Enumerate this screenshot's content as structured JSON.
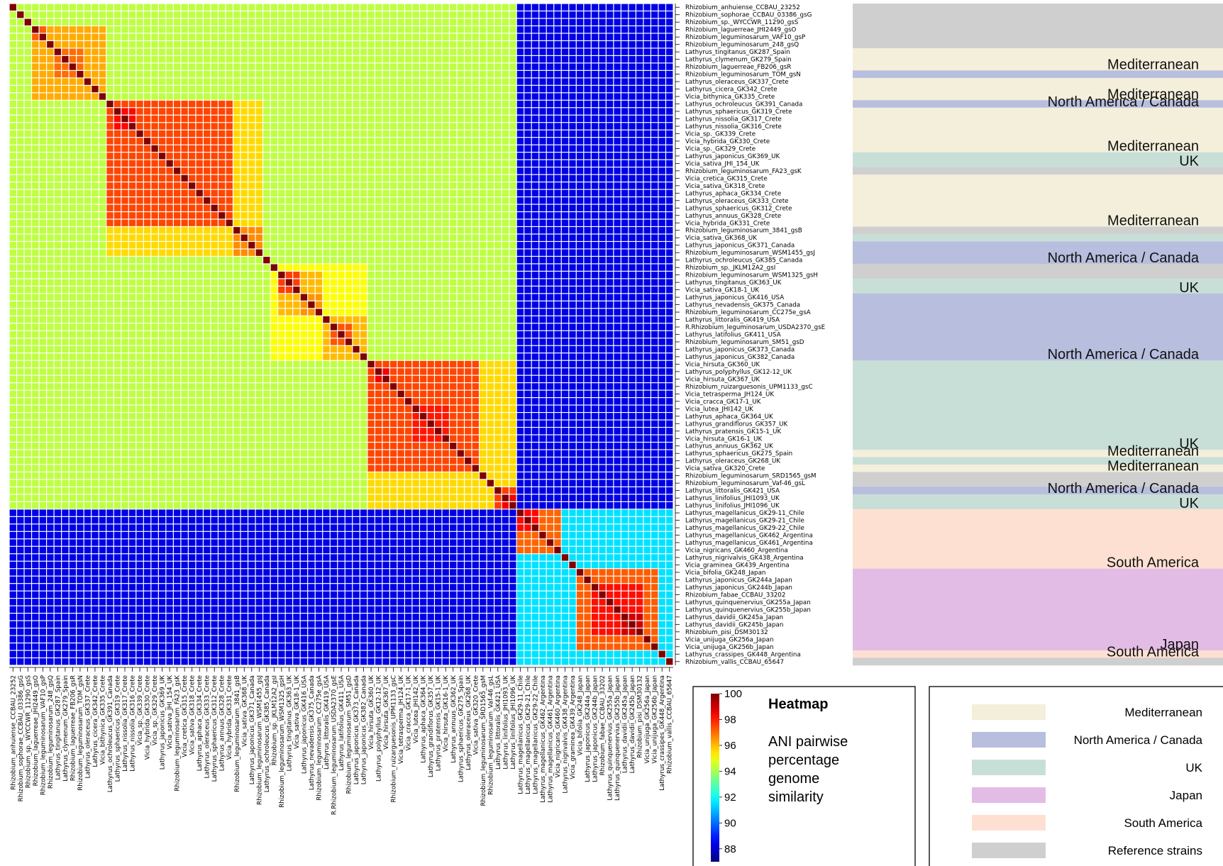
{
  "chart_data": {
    "type": "heatmap",
    "labels": [
      "Rhizobium_anhuiense_CCBAU_23252",
      "Rhizobium_sophorae_CCBAU_03386_gsG",
      "Rhizobium_sp._WYCCWR_11290_gsS",
      "Rhizobium_laguerreae_JHI2449_gsO",
      "Rhizobium_leguminosarum_VAF10_gsP",
      "Rhizobium_leguminosarum_248_gsQ",
      "Lathyrus_tingitanus_GK287_Spain",
      "Lathyrus_clymenum_GK279_Spain",
      "Rhizobium_laguerreae_FB206_gsR",
      "Rhizobium_leguminosarum_TOM_gsN",
      "Lathyrus_oleraceus_GK337_Crete",
      "Lathyrus_cicera_GK342_Crete",
      "Vicia_bithynica_GK335_Crete",
      "Lathyrus_ochroleucus_GK391_Canada",
      "Lathyrus_sphaericus_GK319_Crete",
      "Lathyrus_nissolia_GK317_Crete",
      "Lathyrus_nissolia_GK316_Crete",
      "Vicia_sp._GK339_Crete",
      "Vicia_hybrida_GK330_Crete",
      "Vicia_sp._GK329_Crete",
      "Lathyrus_japonicus_GK369_UK",
      "Vicia_sativa_JHI_154_UK",
      "Rhizobium_leguminosarum_FA23_gsK",
      "Vicia_cretica_GK315_Crete",
      "Vicia_sativa_GK318_Crete",
      "Lathyrus_aphaca_GK334_Crete",
      "Lathyrus_oleraceus_GK333_Crete",
      "Lathyrus_sphaericus_GK312_Crete",
      "Lathyrus_annuus_GK328_Crete",
      "Vicia_hybrida_GK331_Crete",
      "Rhizobium_leguminosarum_3841_gsB",
      "Vicia_sativa_GK368_UK",
      "Lathyrus_japonicus_GK371_Canada",
      "Rhizobium_leguminosarum_WSM1455_gsJ",
      "Lathyrus_ochroleucus_GK385_Canada",
      "Rhizobium_sp._JKLM12A2_gsI",
      "Rhizobium_leguminosarum_WSM1325_gsH",
      "Lathyrus_tingitanus_GK363_UK",
      "Vicia_sativa_GK18-1_UK",
      "Lathyrus_japonicus_GK416_USA",
      "Lathyrus_nevadensis_GK375_Canada",
      "Rhizobium_leguminosarum_CC275e_gsA",
      "Lathyrus_littoralis_GK419_USA",
      "R.Rhizobium_leguminosarum_USDA2370_gsE",
      "Lathyrus_latifolius_GK411_USA",
      "Rhizobium_leguminosarum_SM51_gsD",
      "Lathyrus_japonicus_GK373_Canada",
      "Lathyrus_japonicus_GK382_Canada",
      "Vicia_hirsuta_GK360_UK",
      "Lathyrus_polyphyllus_GK12-12_UK",
      "Vicia_hirsuta_GK367_UK",
      "Rhizobium_ruizarguesonis_UPM1133_gsC",
      "Vicia_tetrasperma_JH124_UK",
      "Vicia_cracca_GK17-1_UK",
      "Vicia_lutea_JHI142_UK",
      "Lathyrus_aphaca_GK364_UK",
      "Lathyrus_grandiflorus_GK357_UK",
      "Lathyrus_pratensis_GK15-1_UK",
      "Vicia_hirsuta_GK16-1_UK",
      "Lathyrus_annuus_GK362_UK",
      "Lathyrus_sphaericus_GK275_Spain",
      "Lathyrus_oleraceus_GK268_UK",
      "Vicia_sativa_GK320_Crete",
      "Rhizobium_leguminosarum_SRD1565_gsM",
      "Rhizobium_leguminosarum_Vaf-46_gsL",
      "Lathyrus_littoralis_GK421_USA",
      "Lathyrus_linifolius_JHI1093_UK",
      "Lathyrus_linifolius_JHI1096_UK",
      "Lathyrus_magellanicus_GK29-11_Chile",
      "Lathyrus_magellanicus_GK29-21_Chile",
      "Lathyrus_magellanicus_GK29-22_Chile",
      "Lathyrus_magellanicus_GK462_Argentina",
      "Lathyrus_magellanicus_GK461_Argentina",
      "Vicia_nigricans_GK460_Argentina",
      "Lathyrus_nigrivalvis_GK438_Argentina",
      "Vicia_graminea_GK439_Argentina",
      "Vicia_bifolia_GK248_Japan",
      "Lathyrus_japonicus_GK244a_Japan",
      "Lathyrus_japonicus_GK244b_Japan",
      "Rhizobium_fabae_CCBAU_33202",
      "Lathyrus_quinquenervius_GK255a_Japan",
      "Lathyrus_quinquenervius_GK255b_Japan",
      "Lathyrus_davidii_GK245a_Japan",
      "Lathyrus_davidii_GK245b_Japan",
      "Rhizobium_pisi_DSM30132",
      "Vicia_unijuga_GK256a_Japan",
      "Vicia_unijuga_GK256b_Japan",
      "Lathyrus_crassipes_GK448_Argentina",
      "Rhizobium_vallis_CCBAU_65647"
    ],
    "value_range": [
      87,
      100
    ],
    "value_model": {
      "diagonal": 100,
      "background_group_A": 94.3,
      "between_groups_A_and_B": 88.3,
      "group_B_outer": 91.5,
      "note_blocks": "blocks of higher similarity listed in blocks[] (row start, end, value)"
    },
    "groups": {
      "A": [
        0,
        67
      ],
      "B1": [
        68,
        75
      ],
      "B2": [
        76,
        86
      ],
      "B3": [
        87,
        87
      ],
      "B4": [
        88,
        88
      ]
    },
    "blocks": [
      {
        "start": 3,
        "end": 12,
        "value": 96.2
      },
      {
        "start": 3,
        "end": 4,
        "value": 97.2
      },
      {
        "start": 6,
        "end": 9,
        "value": 97.0
      },
      {
        "start": 13,
        "end": 33,
        "value": 95.6
      },
      {
        "start": 13,
        "end": 29,
        "value": 97.5
      },
      {
        "start": 14,
        "end": 16,
        "value": 98.3
      },
      {
        "start": 30,
        "end": 33,
        "value": 96.6
      },
      {
        "start": 35,
        "end": 47,
        "value": 95.1
      },
      {
        "start": 36,
        "end": 41,
        "value": 96.0
      },
      {
        "start": 36,
        "end": 38,
        "value": 97.6
      },
      {
        "start": 39,
        "end": 41,
        "value": 96.5
      },
      {
        "start": 42,
        "end": 47,
        "value": 96.0
      },
      {
        "start": 43,
        "end": 45,
        "value": 97.3
      },
      {
        "start": 48,
        "end": 67,
        "value": 95.6
      },
      {
        "start": 48,
        "end": 62,
        "value": 97.5
      },
      {
        "start": 49,
        "end": 50,
        "value": 98.5
      },
      {
        "start": 54,
        "end": 58,
        "value": 98.1
      },
      {
        "start": 65,
        "end": 67,
        "value": 97.6
      },
      {
        "start": 66,
        "end": 67,
        "value": 98.5
      },
      {
        "start": 68,
        "end": 73,
        "value": 97.1
      },
      {
        "start": 68,
        "end": 70,
        "value": 98.3
      },
      {
        "start": 76,
        "end": 86,
        "value": 97.2
      },
      {
        "start": 78,
        "end": 84,
        "value": 98.2
      },
      {
        "start": 82,
        "end": 84,
        "value": 99.0
      }
    ],
    "colorbar": {
      "ticks": [
        100,
        98,
        96,
        94,
        92,
        90,
        88
      ],
      "range": [
        87,
        100
      ]
    },
    "region_colors": {
      "Mediterranean": "#f4efdb",
      "North America / Canada": "#b7bede",
      "UK": "#c8dfd8",
      "Japan": "#e3bce6",
      "South America": "#fde0d2",
      "Reference strains": "#cfcfcf"
    },
    "region_strip": [
      {
        "start": 0,
        "end": 5,
        "region": "Reference strains",
        "label": ""
      },
      {
        "start": 6,
        "end": 8,
        "region": "Mediterranean",
        "label": "Mediterranean"
      },
      {
        "start": 9,
        "end": 9,
        "region": "North America / Canada",
        "label": ""
      },
      {
        "start": 10,
        "end": 12,
        "region": "Mediterranean",
        "label": "Mediterranean"
      },
      {
        "start": 13,
        "end": 13,
        "region": "North America / Canada",
        "label": "North America / Canada"
      },
      {
        "start": 14,
        "end": 19,
        "region": "Mediterranean",
        "label": "Mediterranean"
      },
      {
        "start": 20,
        "end": 21,
        "region": "UK",
        "label": "UK"
      },
      {
        "start": 22,
        "end": 22,
        "region": "Reference strains",
        "label": ""
      },
      {
        "start": 23,
        "end": 29,
        "region": "Mediterranean",
        "label": "Mediterranean"
      },
      {
        "start": 30,
        "end": 30,
        "region": "Reference strains",
        "label": ""
      },
      {
        "start": 31,
        "end": 31,
        "region": "UK",
        "label": ""
      },
      {
        "start": 32,
        "end": 34,
        "region": "North America / Canada",
        "label": "North America / Canada"
      },
      {
        "start": 35,
        "end": 36,
        "region": "Reference strains",
        "label": ""
      },
      {
        "start": 37,
        "end": 38,
        "region": "UK",
        "label": "UK"
      },
      {
        "start": 39,
        "end": 47,
        "region": "North America / Canada",
        "label": "North America / Canada"
      },
      {
        "start": 48,
        "end": 59,
        "region": "UK",
        "label": "UK"
      },
      {
        "start": 60,
        "end": 60,
        "region": "Mediterranean",
        "label": "Mediterranean"
      },
      {
        "start": 61,
        "end": 61,
        "region": "UK",
        "label": ""
      },
      {
        "start": 62,
        "end": 62,
        "region": "Mediterranean",
        "label": "Mediterranean"
      },
      {
        "start": 63,
        "end": 64,
        "region": "Reference strains",
        "label": ""
      },
      {
        "start": 65,
        "end": 65,
        "region": "North America / Canada",
        "label": "North America / Canada"
      },
      {
        "start": 66,
        "end": 67,
        "region": "UK",
        "label": "UK"
      },
      {
        "start": 68,
        "end": 75,
        "region": "South America",
        "label": "South America"
      },
      {
        "start": 76,
        "end": 86,
        "region": "Japan",
        "label": "Japan"
      },
      {
        "start": 87,
        "end": 87,
        "region": "South America",
        "label": "South America"
      },
      {
        "start": 88,
        "end": 88,
        "region": "Reference strains",
        "label": ""
      }
    ],
    "colorbar_box": {
      "title": "Heatmap",
      "description": [
        "ANI pairwise",
        "percentage",
        "genome",
        "similarity"
      ]
    },
    "legend": [
      {
        "label": "Mediterranean",
        "region": "Mediterranean"
      },
      {
        "label": "North America / Canada",
        "region": "North America / Canada"
      },
      {
        "label": "UK",
        "region": "UK"
      },
      {
        "label": "Japan",
        "region": "Japan"
      },
      {
        "label": "South America",
        "region": "South America"
      },
      {
        "label": "Reference strains",
        "region": "Reference strains"
      }
    ]
  }
}
